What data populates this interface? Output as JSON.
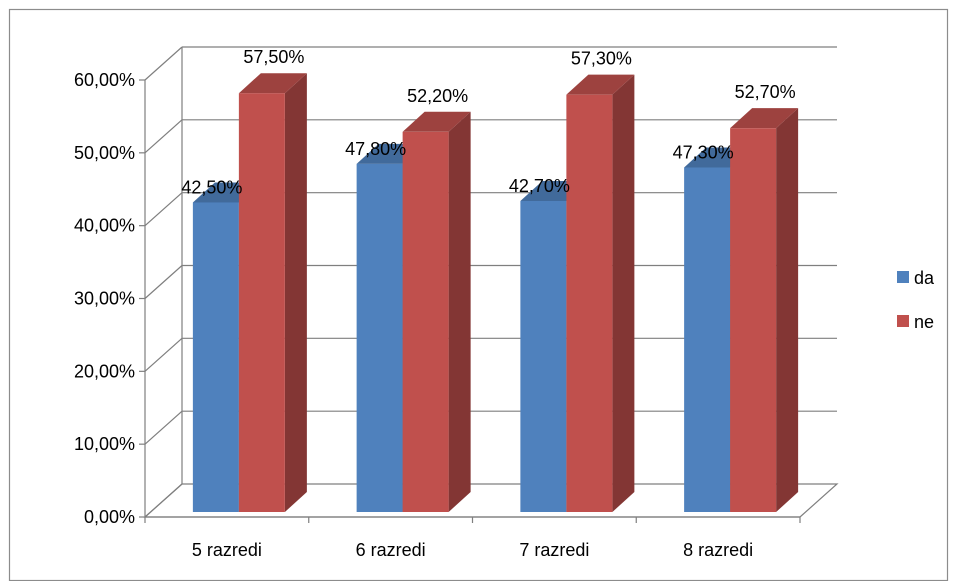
{
  "chart_data": {
    "type": "bar",
    "categories": [
      "5 razredi",
      "6 razredi",
      "7 razredi",
      "8 razredi"
    ],
    "series": [
      {
        "name": "da",
        "values": [
          42.5,
          47.8,
          42.7,
          47.3
        ],
        "labels": [
          "42,50%",
          "47,80%",
          "42,70%",
          "47,30%"
        ],
        "color": "#4F81BD"
      },
      {
        "name": "ne",
        "values": [
          57.5,
          52.2,
          57.3,
          52.7
        ],
        "labels": [
          "57,50%",
          "52,20%",
          "57,30%",
          "52,70%"
        ],
        "color": "#C0504D"
      }
    ],
    "ylim": [
      0,
      60
    ],
    "yticks": [
      0,
      10,
      20,
      30,
      40,
      50,
      60
    ],
    "ytick_labels": [
      "0,00%",
      "10,00%",
      "20,00%",
      "30,00%",
      "40,00%",
      "50,00%",
      "60,00%"
    ],
    "title": "",
    "xlabel": "",
    "ylabel": "",
    "grid": true,
    "legend": "right",
    "style": "3d-clustered-column"
  }
}
